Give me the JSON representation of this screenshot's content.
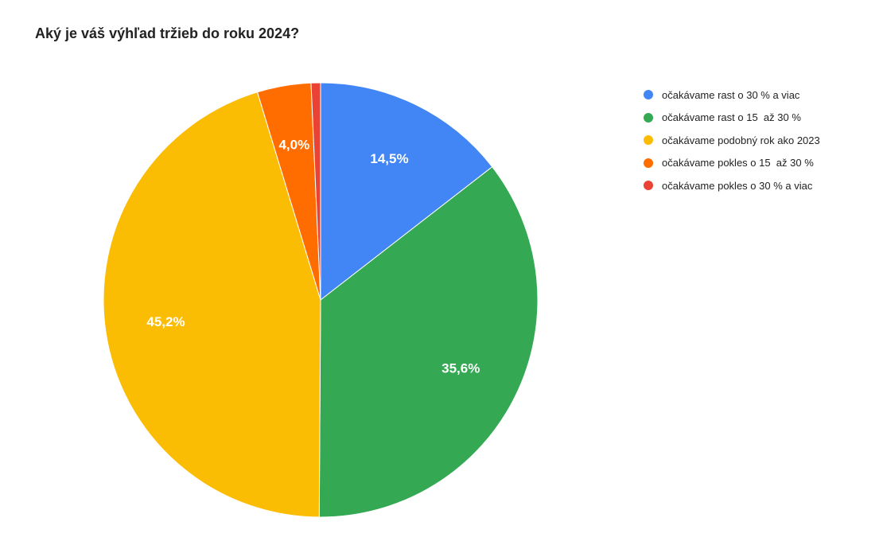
{
  "chart_data": {
    "type": "pie",
    "title": "Aký je váš výhľad tržieb do roku 2024?",
    "legend_position": "right",
    "slices": [
      {
        "label": "očakávame rast o 30 % a viac",
        "value": 14.5,
        "value_label": "14,5%",
        "color": "#4285F4"
      },
      {
        "label": "očakávame rast o 15  až 30 %",
        "value": 35.6,
        "value_label": "35,6%",
        "color": "#34A853"
      },
      {
        "label": "očakávame podobný rok ako 2023",
        "value": 45.2,
        "value_label": "45,2%",
        "color": "#FBBC04"
      },
      {
        "label": "očakávame pokles o 15  až 30 %",
        "value": 4.0,
        "value_label": "4,0%",
        "color": "#FF6D01"
      },
      {
        "label": "očakávame pokles o 30 % a viac",
        "value": 0.7,
        "value_label": "",
        "color": "#EA4335"
      }
    ]
  }
}
